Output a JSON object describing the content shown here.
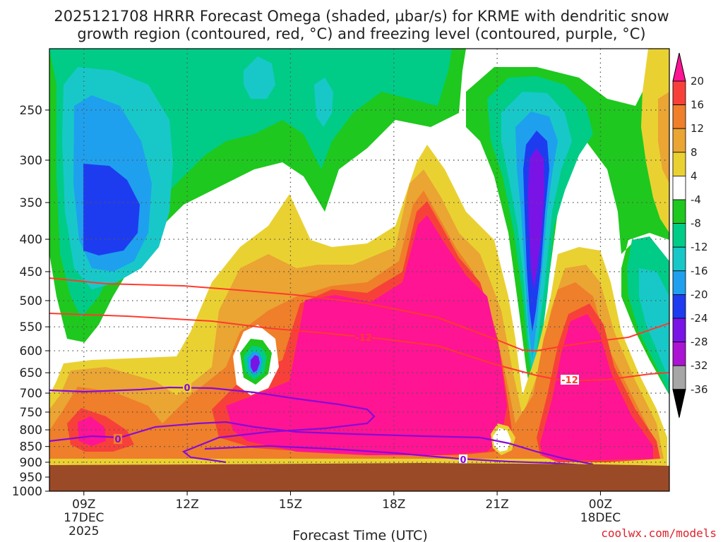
{
  "title_line1": "2025121708 HRRR Forecast Omega (shaded, µbar/s) for KRME with dendritic snow",
  "title_line2": "growth region (contoured, red, °C) and freezing level (contoured, purple, °C)",
  "xlabel": "Forecast Time (UTC)",
  "credit": "coolwx.com/models",
  "colors": {
    "ground": "#9b4a28",
    "red_contour": "#ff3a2e",
    "purple_contour": "#8a0ad6",
    "grid": "#555555"
  },
  "chart_data": {
    "type": "heatmap",
    "x_axis": {
      "ticks": [
        {
          "hour": 9,
          "label": "09Z",
          "sub1": "17DEC",
          "sub2": "2025"
        },
        {
          "hour": 12,
          "label": "12Z"
        },
        {
          "hour": 15,
          "label": "15Z"
        },
        {
          "hour": 18,
          "label": "18Z"
        },
        {
          "hour": 21,
          "label": "21Z"
        },
        {
          "hour": 24,
          "label": "00Z",
          "sub1": "18DEC"
        }
      ],
      "range": [
        8,
        26
      ]
    },
    "y_axis": {
      "ticks": [
        250,
        300,
        350,
        400,
        450,
        500,
        550,
        600,
        650,
        700,
        750,
        800,
        850,
        900,
        950,
        1000
      ],
      "range_hpa": [
        200,
        1000
      ],
      "scale": "log pressure"
    },
    "colorbar": {
      "levels": [
        20,
        16,
        12,
        8,
        4,
        -4,
        -8,
        -12,
        -16,
        -20,
        -24,
        -28,
        -32,
        -36
      ],
      "colors": [
        "#ff1493",
        "#f8403a",
        "#ef7f2a",
        "#eaa533",
        "#ead132",
        "#ffffff",
        "#1ec81e",
        "#00cc88",
        "#18c8c8",
        "#1ea0ee",
        "#1e3cef",
        "#7a14e6",
        "#aa14d2",
        "#a6a6a6",
        "#000000"
      ]
    },
    "contours": [
      {
        "series": "dendritic snow growth region",
        "color": "red",
        "label": "-12"
      },
      {
        "series": "freezing level",
        "color": "purple",
        "label": "0"
      }
    ]
  }
}
